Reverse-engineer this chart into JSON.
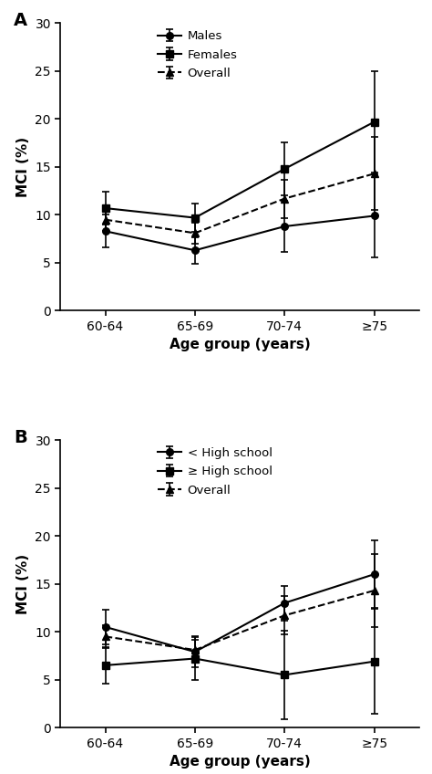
{
  "x_labels": [
    "60-64",
    "65-69",
    "70-74",
    "≥75"
  ],
  "x_ticks": [
    0,
    1,
    2,
    3
  ],
  "panel_A": {
    "label": "A",
    "series": [
      {
        "name": "Males",
        "y": [
          8.3,
          6.3,
          8.8,
          9.9
        ],
        "yerr_lo": [
          1.7,
          1.4,
          2.7,
          4.3
        ],
        "yerr_hi": [
          1.7,
          1.4,
          2.7,
          4.3
        ],
        "marker": "o",
        "linestyle": "-",
        "color": "#000000"
      },
      {
        "name": "Females",
        "y": [
          10.7,
          9.7,
          14.8,
          19.7
        ],
        "yerr_lo": [
          1.7,
          1.5,
          2.8,
          5.3
        ],
        "yerr_hi": [
          1.7,
          1.5,
          2.8,
          5.3
        ],
        "marker": "s",
        "linestyle": "-",
        "color": "#000000"
      },
      {
        "name": "Overall",
        "y": [
          9.5,
          8.1,
          11.7,
          14.3
        ],
        "yerr_lo": [
          1.2,
          1.1,
          2.0,
          3.8
        ],
        "yerr_hi": [
          1.2,
          1.1,
          2.0,
          3.8
        ],
        "marker": "^",
        "linestyle": "--",
        "color": "#000000"
      }
    ],
    "ylabel": "MCI (%)",
    "xlabel": "Age group (years)",
    "ylim": [
      0,
      30
    ],
    "yticks": [
      0,
      5,
      10,
      15,
      20,
      25,
      30
    ]
  },
  "panel_B": {
    "label": "B",
    "series": [
      {
        "name": "< High school",
        "y": [
          10.5,
          7.9,
          13.0,
          16.0
        ],
        "yerr_lo": [
          1.8,
          1.6,
          1.8,
          3.5
        ],
        "yerr_hi": [
          1.8,
          1.6,
          1.8,
          3.5
        ],
        "marker": "o",
        "linestyle": "-",
        "color": "#000000"
      },
      {
        "name": "≥ High school",
        "y": [
          6.5,
          7.2,
          5.5,
          6.9
        ],
        "yerr_lo": [
          1.9,
          2.2,
          4.6,
          5.5
        ],
        "yerr_hi": [
          1.9,
          2.2,
          4.6,
          5.5
        ],
        "marker": "s",
        "linestyle": "-",
        "color": "#000000"
      },
      {
        "name": "Overall",
        "y": [
          9.5,
          8.1,
          11.7,
          14.3
        ],
        "yerr_lo": [
          1.2,
          1.1,
          2.0,
          3.8
        ],
        "yerr_hi": [
          1.2,
          1.1,
          2.0,
          3.8
        ],
        "marker": "^",
        "linestyle": "--",
        "color": "#000000"
      }
    ],
    "ylabel": "MCI (%)",
    "xlabel": "Age group (years)",
    "ylim": [
      0,
      30
    ],
    "yticks": [
      0,
      5,
      10,
      15,
      20,
      25,
      30
    ]
  }
}
